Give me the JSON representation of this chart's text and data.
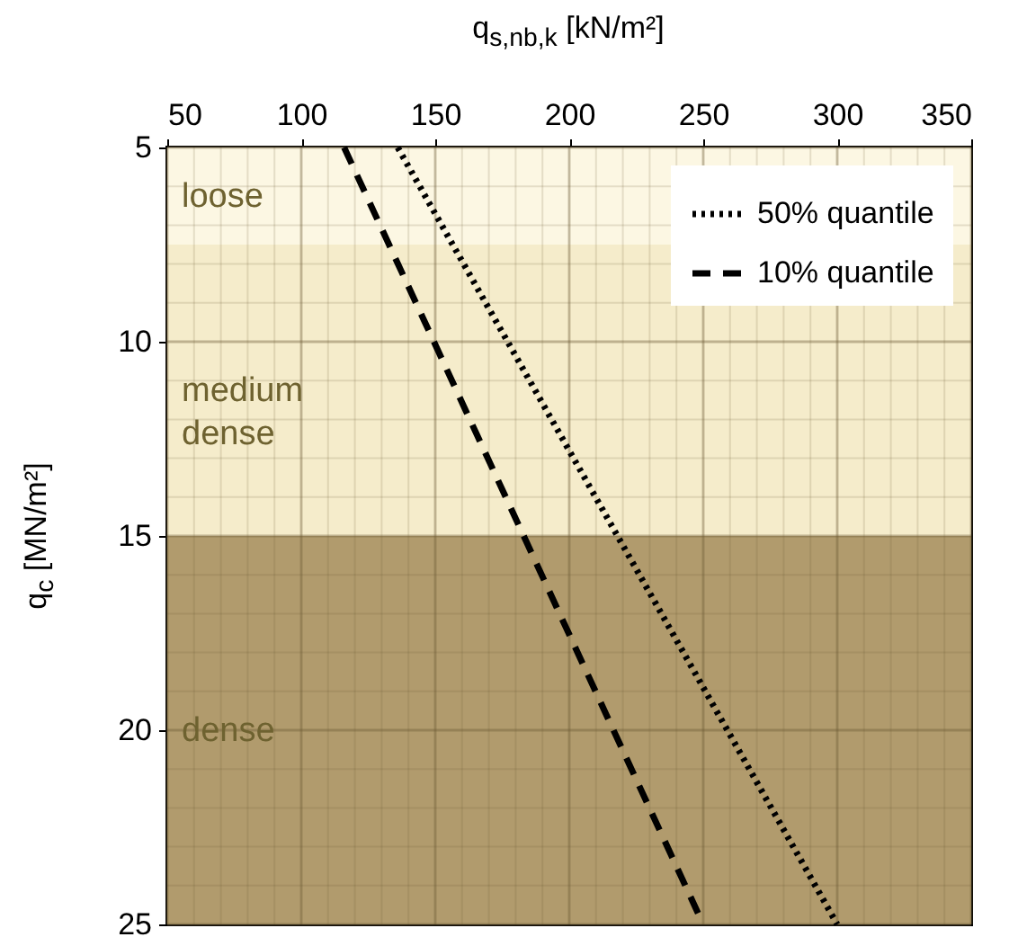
{
  "chart_data": {
    "type": "line",
    "xlabel": "q$_{s,nb,k}$ [kN/m²]",
    "ylabel": "q$_{c}$ [MN/m²]",
    "xlim": [
      50,
      350
    ],
    "xticks": [
      50,
      {
        "value": 60,
        "label": null
      },
      {
        "value": 70,
        "label": null
      },
      {
        "value": 80,
        "label": null
      },
      {
        "value": 90,
        "label": null
      },
      100,
      {
        "value": 110,
        "label": null
      },
      {
        "value": 120,
        "label": null
      },
      {
        "value": 130,
        "label": null
      },
      {
        "value": 140,
        "label": null
      },
      150,
      {
        "value": 160,
        "label": null
      },
      {
        "value": 170,
        "label": null
      },
      {
        "value": 180,
        "label": null
      },
      {
        "value": 190,
        "label": null
      },
      200,
      {
        "value": 210,
        "label": null
      },
      {
        "value": 220,
        "label": null
      },
      {
        "value": 230,
        "label": null
      },
      {
        "value": 240,
        "label": null
      },
      250,
      {
        "value": 260,
        "label": null
      },
      {
        "value": 270,
        "label": null
      },
      {
        "value": 280,
        "label": null
      },
      {
        "value": 290,
        "label": null
      },
      300,
      {
        "value": 310,
        "label": null
      },
      {
        "value": 320,
        "label": null
      },
      {
        "value": 330,
        "label": null
      },
      {
        "value": 340,
        "label": null
      },
      350
    ],
    "ylim": [
      25,
      5
    ],
    "yticks": [
      5,
      {
        "value": 6,
        "label": null
      },
      {
        "value": 7,
        "label": null
      },
      {
        "value": 8,
        "label": null
      },
      {
        "value": 9,
        "label": null
      },
      10,
      {
        "value": 11,
        "label": null
      },
      {
        "value": 12,
        "label": null
      },
      {
        "value": 13,
        "label": null
      },
      {
        "value": 14,
        "label": null
      },
      15,
      {
        "value": 16,
        "label": null
      },
      {
        "value": 17,
        "label": null
      },
      {
        "value": 18,
        "label": null
      },
      {
        "value": 19,
        "label": null
      },
      20,
      {
        "value": 21,
        "label": null
      },
      {
        "value": 22,
        "label": null
      },
      {
        "value": 23,
        "label": null
      },
      {
        "value": 24,
        "label": null
      },
      25
    ],
    "grid": true,
    "legend": "top right",
    "bands": [
      {
        "axis": "y",
        "from": 5,
        "to": 7.5,
        "label": "loose",
        "color": "#fcf7e3"
      },
      {
        "axis": "y",
        "from": 7.5,
        "to": 15,
        "label": "medium dense",
        "color": "#f5eccb"
      },
      {
        "axis": "y",
        "from": 15,
        "to": 25,
        "label": "dense",
        "color": "#b19b6d"
      }
    ],
    "series": [
      {
        "name": "50% quantile",
        "color": "#000000",
        "line_style": "dotted",
        "x": [
          136,
          300
        ],
        "values": [
          5,
          25
        ]
      },
      {
        "name": "10% quantile",
        "color": "#000000",
        "line_style": "dashed",
        "x": [
          116,
          250
        ],
        "values": [
          5,
          25
        ]
      }
    ]
  }
}
